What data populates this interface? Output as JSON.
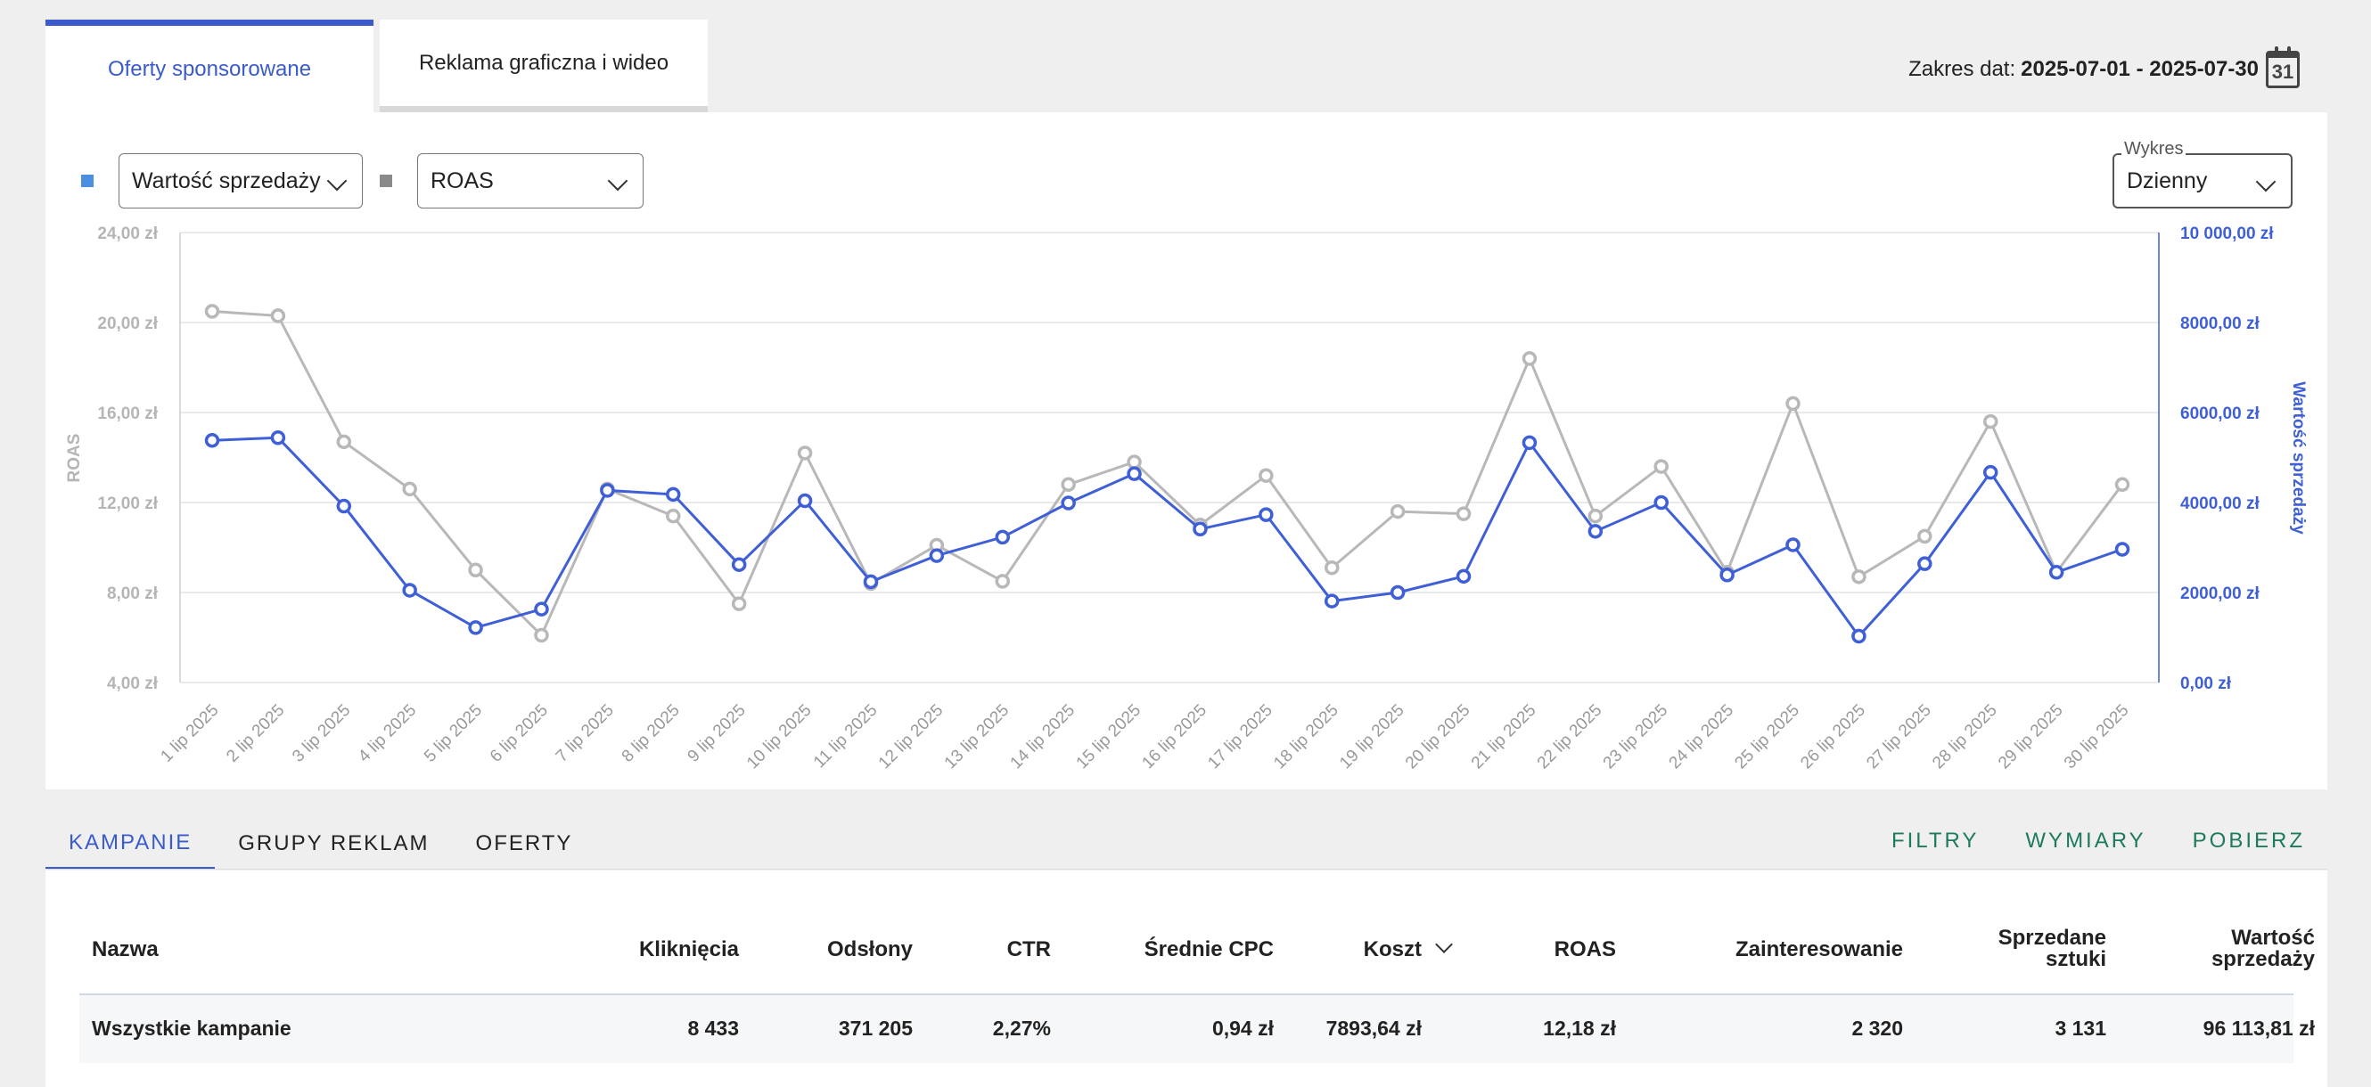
{
  "tabs": {
    "sponsored": "Oferty sponsorowane",
    "display": "Reklama graficzna i wideo"
  },
  "date_range": {
    "label": "Zakres dat:",
    "value": "2025-07-01 - 2025-07-30",
    "calendar_day": "31"
  },
  "controls": {
    "metric1": "Wartość sprzedaży",
    "metric2": "ROAS",
    "chart_label": "Wykres",
    "chart_value": "Dzienny"
  },
  "colors": {
    "metric1": "#3f5fd6",
    "metric2": "#b8b8b8",
    "legend1": "#4a8fe0",
    "legend2": "#8a8a8a"
  },
  "chart_data": {
    "type": "line",
    "x": [
      "1 lip 2025",
      "2 lip 2025",
      "3 lip 2025",
      "4 lip 2025",
      "5 lip 2025",
      "6 lip 2025",
      "7 lip 2025",
      "8 lip 2025",
      "9 lip 2025",
      "10 lip 2025",
      "11 lip 2025",
      "12 lip 2025",
      "13 lip 2025",
      "14 lip 2025",
      "15 lip 2025",
      "16 lip 2025",
      "17 lip 2025",
      "18 lip 2025",
      "19 lip 2025",
      "20 lip 2025",
      "21 lip 2025",
      "22 lip 2025",
      "23 lip 2025",
      "24 lip 2025",
      "25 lip 2025",
      "26 lip 2025",
      "27 lip 2025",
      "28 lip 2025",
      "29 lip 2025",
      "30 lip 2025"
    ],
    "left_axis": {
      "label": "ROAS",
      "ylim": [
        4,
        24
      ],
      "ticks": [
        "24,00 zł",
        "20,00 zł",
        "16,00 zł",
        "12,00 zł",
        "8,00 zł",
        "4,00 zł"
      ]
    },
    "right_axis": {
      "label": "Wartość sprzedaży",
      "ylim": [
        0,
        10000
      ],
      "ticks": [
        "10 000,00 zł",
        "8000,00 zł",
        "6000,00 zł",
        "4000,00 zł",
        "2000,00 zł",
        "0,00 zł"
      ]
    },
    "series": [
      {
        "name": "ROAS",
        "axis": "left",
        "values": [
          20.5,
          20.3,
          14.7,
          12.6,
          9.0,
          6.1,
          12.6,
          11.4,
          7.5,
          14.2,
          8.4,
          10.1,
          8.5,
          12.8,
          13.8,
          11.0,
          13.2,
          9.1,
          11.6,
          11.5,
          18.4,
          11.4,
          13.6,
          8.9,
          16.4,
          8.7,
          10.5,
          15.6,
          8.9,
          12.8
        ]
      },
      {
        "name": "Wartość sprzedaży",
        "axis": "right",
        "values": [
          5380,
          5440,
          3920,
          2050,
          1220,
          1630,
          4270,
          4180,
          2620,
          4040,
          2240,
          2820,
          3230,
          3990,
          4640,
          3410,
          3730,
          1810,
          2000,
          2360,
          5330,
          3360,
          4000,
          2390,
          3060,
          1030,
          2640,
          4670,
          2450,
          2960
        ]
      }
    ],
    "grid": true
  },
  "bottom_tabs": [
    "KAMPANIE",
    "GRUPY REKLAM",
    "OFERTY"
  ],
  "actions": [
    "FILTRY",
    "WYMIARY",
    "POBIERZ"
  ],
  "table": {
    "headers": {
      "name": "Nazwa",
      "clicks": "Kliknięcia",
      "views": "Odsłony",
      "ctr": "CTR",
      "cpc": "Średnie CPC",
      "cost": "Koszt",
      "roas": "ROAS",
      "interest": "Zainteresowanie",
      "sold_1": "Sprzedane",
      "sold_2": "sztuki",
      "value_1": "Wartość",
      "value_2": "sprzedaży"
    },
    "row": {
      "name": "Wszystkie kampanie",
      "clicks": "8 433",
      "views": "371 205",
      "ctr": "2,27%",
      "cpc": "0,94 zł",
      "cost": "7893,64 zł",
      "roas": "12,18 zł",
      "interest": "2 320",
      "sold": "3 131",
      "value": "96 113,81 zł"
    }
  }
}
